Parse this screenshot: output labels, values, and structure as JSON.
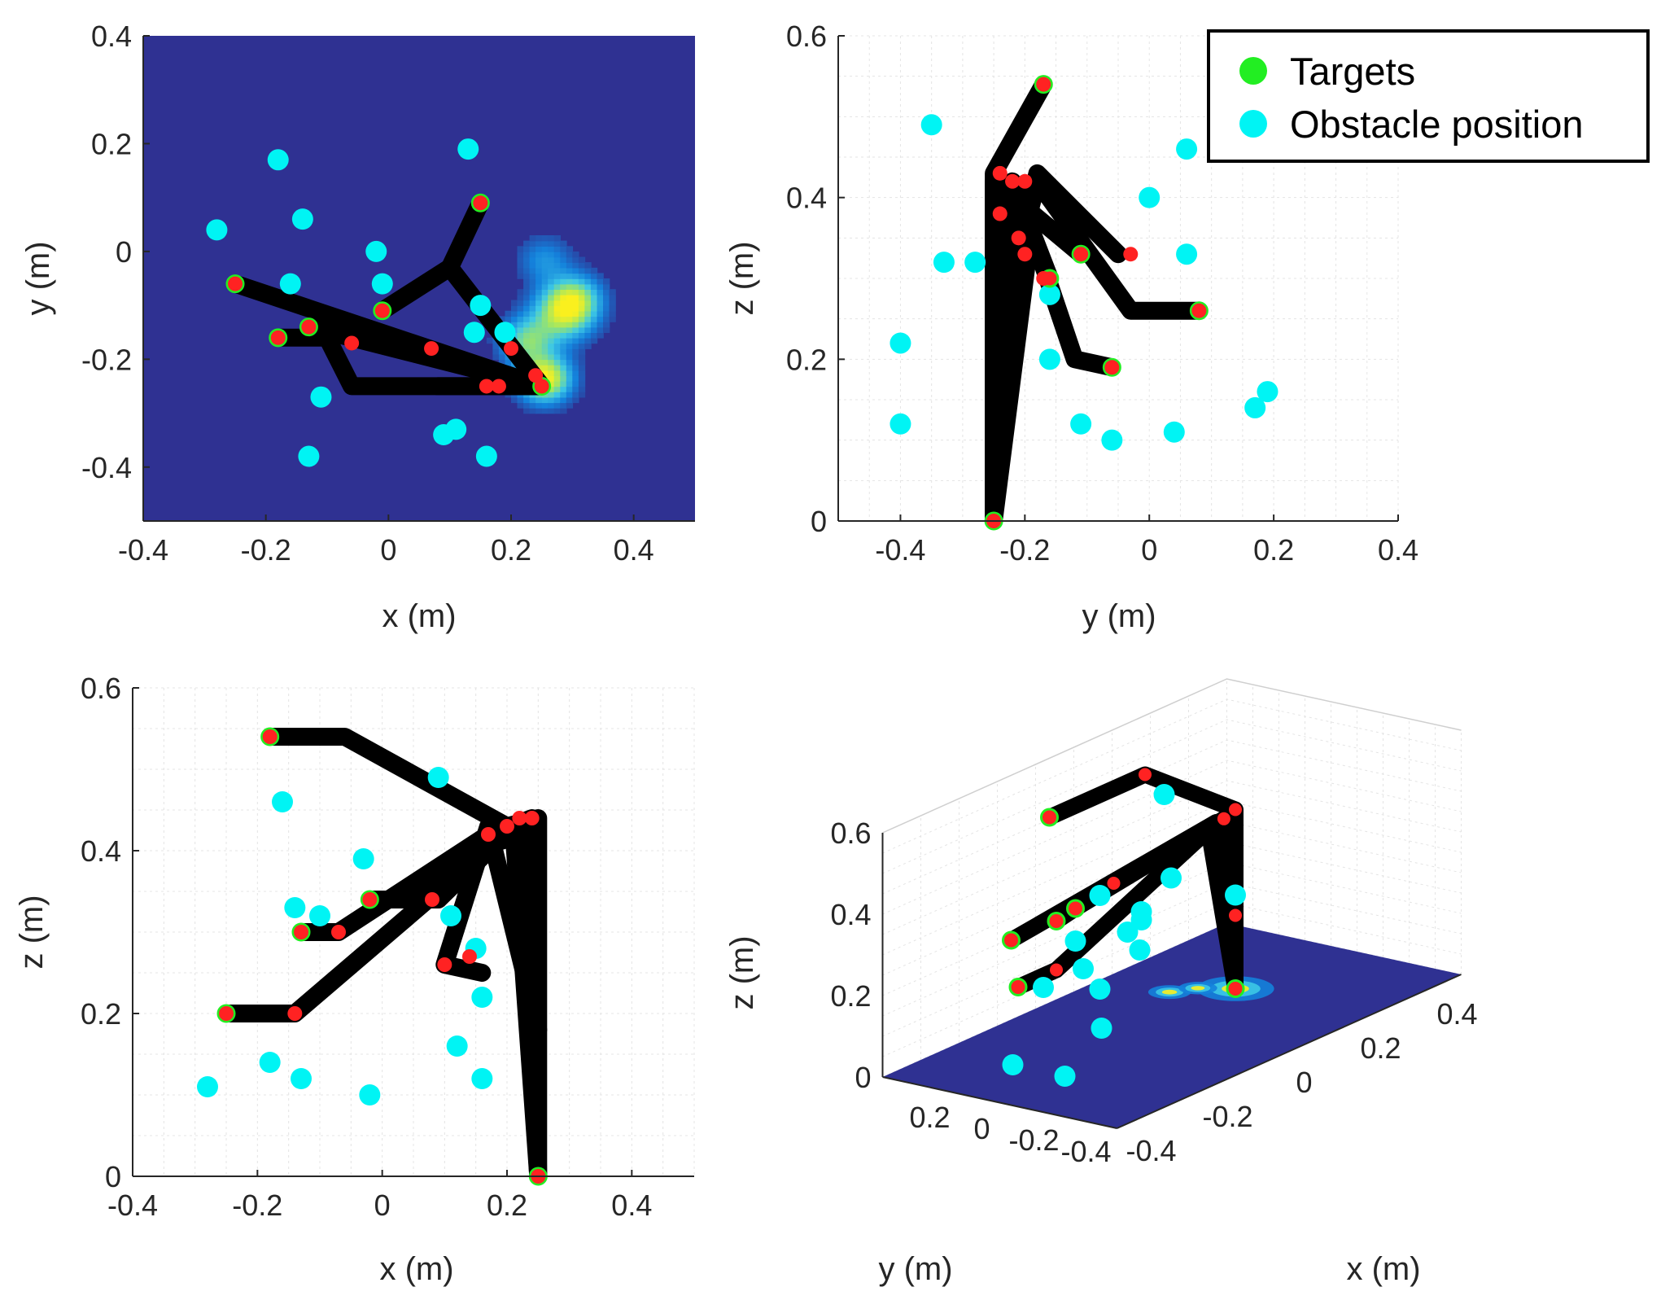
{
  "colors": {
    "target": "#22ee22",
    "obstacle": "#00f4f4",
    "arm": "#000000",
    "joint": "#ff2222",
    "floor": "#2f3192",
    "grid": "#e4e4e4",
    "axis": "#262626"
  },
  "legend": {
    "placement": "top-right",
    "items": [
      {
        "label": "Targets",
        "color": "#22ee22"
      },
      {
        "label": "Obstacle position",
        "color": "#00f4f4"
      }
    ]
  },
  "chart_data": [
    {
      "type": "scatter",
      "view": "top view with obstacle-cost heatmap",
      "xlabel": "x (m)",
      "ylabel": "y (m)",
      "xlim": [
        -0.4,
        0.5
      ],
      "ylim": [
        -0.5,
        0.4
      ],
      "xticks": [
        "-0.4",
        "-0.2",
        "0",
        "0.2",
        "0.4"
      ],
      "yticks": [
        "0.4",
        "0.2",
        "0",
        "-0.2",
        "-0.4"
      ],
      "grid": false,
      "heatmap": {
        "colormap": "parula",
        "peaks": [
          {
            "x": 0.25,
            "y": -0.24,
            "intensity": 1.0,
            "spread": 0.03
          },
          {
            "x": 0.28,
            "y": -0.12,
            "intensity": 0.75,
            "spread": 0.035
          },
          {
            "x": 0.3,
            "y": -0.09,
            "intensity": 0.55,
            "spread": 0.03
          },
          {
            "x": 0.22,
            "y": -0.17,
            "intensity": 0.6,
            "spread": 0.03
          },
          {
            "x": 0.25,
            "y": -0.02,
            "intensity": 0.3,
            "spread": 0.03
          }
        ]
      },
      "obstacles": [
        [
          -0.18,
          0.17
        ],
        [
          -0.28,
          0.04
        ],
        [
          -0.14,
          0.06
        ],
        [
          -0.16,
          -0.06
        ],
        [
          -0.02,
          0.0
        ],
        [
          -0.01,
          -0.06
        ],
        [
          0.13,
          0.19
        ],
        [
          0.15,
          -0.1
        ],
        [
          0.14,
          -0.15
        ],
        [
          0.19,
          -0.15
        ],
        [
          -0.11,
          -0.27
        ],
        [
          0.09,
          -0.34
        ],
        [
          0.11,
          -0.33
        ],
        [
          -0.13,
          -0.38
        ],
        [
          0.16,
          -0.38
        ]
      ],
      "targets": [
        [
          0.15,
          0.09
        ],
        [
          -0.25,
          -0.06
        ],
        [
          -0.18,
          -0.16
        ],
        [
          -0.13,
          -0.14
        ],
        [
          -0.01,
          -0.11
        ],
        [
          0.25,
          -0.25
        ]
      ],
      "links": [
        [
          [
            0.25,
            -0.25
          ],
          [
            0.1,
            -0.03
          ],
          [
            0.15,
            0.09
          ]
        ],
        [
          [
            0.25,
            -0.25
          ],
          [
            0.1,
            -0.03
          ],
          [
            -0.01,
            -0.11
          ]
        ],
        [
          [
            0.25,
            -0.25
          ],
          [
            -0.25,
            -0.06
          ]
        ],
        [
          [
            0.25,
            -0.25
          ],
          [
            -0.06,
            -0.25
          ],
          [
            -0.1,
            -0.16
          ],
          [
            -0.18,
            -0.16
          ]
        ],
        [
          [
            0.25,
            -0.25
          ],
          [
            -0.13,
            -0.14
          ]
        ],
        [
          [
            0.25,
            -0.25
          ],
          [
            0.16,
            -0.25
          ],
          [
            0.08,
            -0.25
          ]
        ]
      ],
      "joints": [
        [
          0.25,
          -0.25
        ],
        [
          0.24,
          -0.23
        ],
        [
          0.2,
          -0.18
        ],
        [
          0.16,
          -0.25
        ],
        [
          0.18,
          -0.25
        ],
        [
          -0.06,
          -0.17
        ],
        [
          0.07,
          -0.18
        ],
        [
          0.15,
          0.09
        ],
        [
          -0.25,
          -0.06
        ],
        [
          -0.18,
          -0.16
        ],
        [
          -0.13,
          -0.14
        ],
        [
          -0.01,
          -0.11
        ]
      ]
    },
    {
      "type": "scatter",
      "view": "side view",
      "xlabel": "y (m)",
      "ylabel": "z (m)",
      "xlim": [
        -0.5,
        0.4
      ],
      "ylim": [
        0,
        0.6
      ],
      "xticks": [
        "-0.4",
        "-0.2",
        "0",
        "0.2",
        "0.4"
      ],
      "yticks": [
        "0.6",
        "0.4",
        "0.2",
        "0"
      ],
      "grid": true,
      "obstacles": [
        [
          -0.35,
          0.49
        ],
        [
          0.06,
          0.46
        ],
        [
          0.0,
          0.4
        ],
        [
          0.06,
          0.33
        ],
        [
          -0.33,
          0.32
        ],
        [
          -0.28,
          0.32
        ],
        [
          -0.4,
          0.22
        ],
        [
          -0.16,
          0.28
        ],
        [
          -0.16,
          0.2
        ],
        [
          -0.4,
          0.12
        ],
        [
          -0.11,
          0.12
        ],
        [
          -0.06,
          0.1
        ],
        [
          0.04,
          0.11
        ],
        [
          0.17,
          0.14
        ],
        [
          0.19,
          0.16
        ]
      ],
      "targets": [
        [
          -0.17,
          0.54
        ],
        [
          -0.11,
          0.33
        ],
        [
          -0.06,
          0.19
        ],
        [
          0.08,
          0.26
        ],
        [
          -0.16,
          0.3
        ],
        [
          -0.25,
          0.0
        ]
      ],
      "links": [
        [
          [
            -0.25,
            0.0
          ],
          [
            -0.25,
            0.43
          ],
          [
            -0.17,
            0.54
          ]
        ],
        [
          [
            -0.25,
            0.0
          ],
          [
            -0.22,
            0.3
          ],
          [
            -0.18,
            0.43
          ],
          [
            -0.05,
            0.33
          ]
        ],
        [
          [
            -0.22,
            0.3
          ],
          [
            -0.18,
            0.42
          ],
          [
            -0.03,
            0.26
          ],
          [
            0.08,
            0.26
          ]
        ],
        [
          [
            -0.25,
            0.0
          ],
          [
            -0.19,
            0.36
          ],
          [
            -0.12,
            0.2
          ],
          [
            -0.06,
            0.19
          ]
        ],
        [
          [
            -0.25,
            0.0
          ],
          [
            -0.25,
            0.42
          ],
          [
            -0.11,
            0.33
          ]
        ],
        [
          [
            -0.25,
            0.0
          ],
          [
            -0.22,
            0.42
          ],
          [
            -0.16,
            0.3
          ]
        ]
      ],
      "joints": [
        [
          -0.25,
          0.0
        ],
        [
          -0.17,
          0.54
        ],
        [
          -0.24,
          0.43
        ],
        [
          -0.22,
          0.42
        ],
        [
          -0.2,
          0.42
        ],
        [
          -0.24,
          0.38
        ],
        [
          -0.21,
          0.35
        ],
        [
          -0.2,
          0.33
        ],
        [
          -0.17,
          0.3
        ],
        [
          -0.11,
          0.33
        ],
        [
          -0.06,
          0.19
        ],
        [
          0.08,
          0.26
        ],
        [
          -0.03,
          0.33
        ]
      ]
    },
    {
      "type": "scatter",
      "view": "front view",
      "xlabel": "x (m)",
      "ylabel": "z (m)",
      "xlim": [
        -0.4,
        0.5
      ],
      "ylim": [
        0,
        0.6
      ],
      "xticks": [
        "-0.4",
        "-0.2",
        "0",
        "0.2",
        "0.4"
      ],
      "yticks": [
        "0.6",
        "0.4",
        "0.2",
        "0"
      ],
      "grid": true,
      "obstacles": [
        [
          -0.16,
          0.46
        ],
        [
          0.09,
          0.49
        ],
        [
          -0.03,
          0.39
        ],
        [
          -0.14,
          0.33
        ],
        [
          -0.1,
          0.32
        ],
        [
          0.11,
          0.32
        ],
        [
          0.15,
          0.28
        ],
        [
          0.16,
          0.22
        ],
        [
          0.12,
          0.16
        ],
        [
          0.16,
          0.12
        ],
        [
          -0.18,
          0.14
        ],
        [
          -0.13,
          0.12
        ],
        [
          -0.02,
          0.1
        ],
        [
          -0.28,
          0.11
        ]
      ],
      "targets": [
        [
          -0.18,
          0.54
        ],
        [
          -0.13,
          0.3
        ],
        [
          -0.25,
          0.2
        ],
        [
          -0.02,
          0.34
        ],
        [
          0.25,
          0.0
        ]
      ],
      "links": [
        [
          [
            0.25,
            0.0
          ],
          [
            0.25,
            0.44
          ],
          [
            0.2,
            0.43
          ],
          [
            -0.06,
            0.54
          ],
          [
            -0.18,
            0.54
          ]
        ],
        [
          [
            0.25,
            0.0
          ],
          [
            0.24,
            0.44
          ],
          [
            0.17,
            0.42
          ],
          [
            -0.07,
            0.3
          ],
          [
            -0.13,
            0.3
          ]
        ],
        [
          [
            0.25,
            0.0
          ],
          [
            0.23,
            0.42
          ],
          [
            0.18,
            0.41
          ],
          [
            -0.14,
            0.2
          ],
          [
            -0.25,
            0.2
          ]
        ],
        [
          [
            0.25,
            0.0
          ],
          [
            0.22,
            0.43
          ],
          [
            0.17,
            0.42
          ],
          [
            0.06,
            0.34
          ],
          [
            -0.02,
            0.34
          ]
        ],
        [
          [
            0.25,
            0.18
          ],
          [
            0.17,
            0.43
          ],
          [
            0.1,
            0.26
          ],
          [
            0.16,
            0.25
          ]
        ],
        [
          [
            0.25,
            0.0
          ],
          [
            0.21,
            0.43
          ],
          [
            0.09,
            0.34
          ],
          [
            0.0,
            0.34
          ]
        ]
      ],
      "joints": [
        [
          0.25,
          0.0
        ],
        [
          -0.18,
          0.54
        ],
        [
          -0.13,
          0.3
        ],
        [
          -0.25,
          0.2
        ],
        [
          -0.02,
          0.34
        ],
        [
          0.2,
          0.43
        ],
        [
          0.22,
          0.44
        ],
        [
          0.24,
          0.44
        ],
        [
          0.17,
          0.42
        ],
        [
          0.08,
          0.34
        ],
        [
          0.1,
          0.26
        ],
        [
          0.14,
          0.27
        ],
        [
          -0.07,
          0.3
        ],
        [
          -0.14,
          0.2
        ]
      ]
    },
    {
      "type": "scatter",
      "view": "3D perspective",
      "xlabel": "x (m)",
      "ylabel": "y (m)",
      "zlabel": "z (m)",
      "xticks": [
        "-0.4",
        "-0.2",
        "0",
        "0.2",
        "0.4"
      ],
      "yticks": [
        "0.2",
        "0",
        "-0.2",
        "-0.4"
      ],
      "zticks": [
        "0.6",
        "0.4",
        "0.2",
        "0"
      ],
      "xlim": [
        -0.4,
        0.5
      ],
      "ylim": [
        -0.5,
        0.4
      ],
      "zlim": [
        0,
        0.6
      ],
      "grid": true,
      "obstacles": [
        [
          0.2,
          0.2,
          0.47
        ],
        [
          -0.2,
          -0.3,
          0.42
        ],
        [
          -0.2,
          -0.3,
          0.4
        ],
        [
          -0.1,
          -0.1,
          0.3
        ],
        [
          0.15,
          0.1,
          0.3
        ],
        [
          0.25,
          0.0,
          0.23
        ],
        [
          -0.1,
          0.1,
          0.25
        ],
        [
          -0.15,
          0.15,
          0.15
        ],
        [
          -0.25,
          -0.15,
          0.28
        ],
        [
          0.0,
          0.0,
          0.2
        ],
        [
          0.1,
          0.3,
          0.25
        ],
        [
          -0.4,
          -0.3,
          0.1
        ],
        [
          -0.1,
          0.0,
          0.05
        ],
        [
          -0.4,
          -0.1,
          0.1
        ],
        [
          0.1,
          0.3,
          0.02
        ]
      ],
      "targets": [
        [
          -0.1,
          0.2,
          0.54
        ],
        [
          -0.15,
          0.1,
          0.32
        ],
        [
          -0.1,
          0.1,
          0.33
        ],
        [
          -0.2,
          0.2,
          0.28
        ],
        [
          -0.25,
          0.1,
          0.2
        ],
        [
          0.25,
          0.0,
          0.0
        ]
      ],
      "links": [
        [
          [
            0.25,
            0.0,
            0.0
          ],
          [
            0.25,
            0.0,
            0.44
          ],
          [
            0.15,
            0.2,
            0.54
          ],
          [
            -0.1,
            0.2,
            0.54
          ]
        ],
        [
          [
            0.25,
            0.0,
            0.0
          ],
          [
            0.2,
            0.0,
            0.43
          ],
          [
            0.0,
            0.1,
            0.35
          ],
          [
            -0.15,
            0.1,
            0.32
          ]
        ],
        [
          [
            0.25,
            0.0,
            0.0
          ],
          [
            0.22,
            0.0,
            0.43
          ],
          [
            -0.1,
            0.1,
            0.33
          ]
        ],
        [
          [
            0.25,
            0.0,
            0.18
          ],
          [
            0.2,
            0.0,
            0.43
          ],
          [
            -0.2,
            0.2,
            0.28
          ]
        ],
        [
          [
            0.25,
            0.0,
            0.0
          ],
          [
            0.18,
            0.0,
            0.42
          ],
          [
            -0.15,
            0.1,
            0.2
          ],
          [
            -0.25,
            0.1,
            0.2
          ]
        ]
      ],
      "joints": [
        [
          0.25,
          0.0,
          0.0
        ],
        [
          0.25,
          0.0,
          0.44
        ],
        [
          0.22,
          0.0,
          0.43
        ],
        [
          0.15,
          0.2,
          0.54
        ],
        [
          -0.1,
          0.2,
          0.54
        ],
        [
          -0.15,
          0.1,
          0.32
        ],
        [
          -0.1,
          0.1,
          0.33
        ],
        [
          -0.2,
          0.2,
          0.28
        ],
        [
          -0.25,
          0.1,
          0.2
        ],
        [
          0.0,
          0.1,
          0.35
        ],
        [
          0.25,
          0.0,
          0.18
        ],
        [
          -0.15,
          0.1,
          0.2
        ]
      ]
    }
  ]
}
